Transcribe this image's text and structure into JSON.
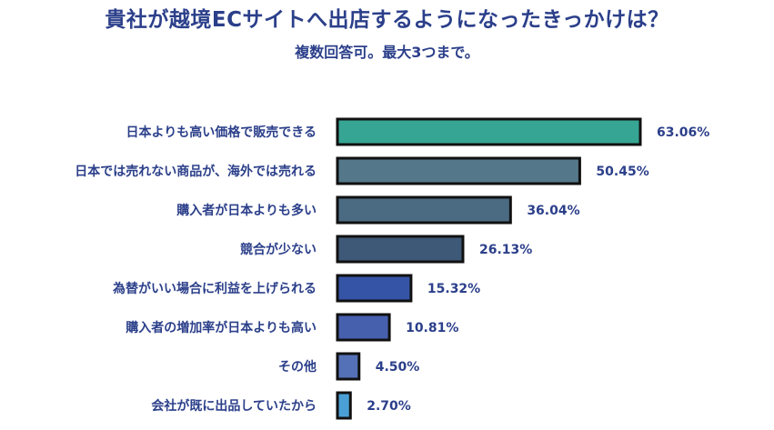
{
  "chart_data": {
    "type": "bar",
    "orientation": "horizontal",
    "title": "貴社が越境ECサイトへ出店するようになったきっかけは？",
    "subtitle": "複数回答可。最大3つまで。",
    "categories": [
      "日本よりも高い価格で販売できる",
      "日本では売れない商品が、海外では売れる",
      "購入者が日本よりも多い",
      "競合が少ない",
      "為替がいい場合に利益を上げられる",
      "購入者の増加率が日本よりも高い",
      "その他",
      "会社が既に出品していたから"
    ],
    "values": [
      63.06,
      50.45,
      36.04,
      26.13,
      15.32,
      10.81,
      4.5,
      2.7
    ],
    "value_labels": [
      "63.06%",
      "50.45%",
      "36.04%",
      "26.13%",
      "15.32%",
      "10.81%",
      "4.50%",
      "2.70%"
    ],
    "colors": [
      "#36a593",
      "#54788a",
      "#4b6b82",
      "#3e5877",
      "#3554a6",
      "#4660ae",
      "#5470b6",
      "#4aa0d6"
    ],
    "xlim": [
      0,
      63.06
    ],
    "grid": false,
    "legend": "none"
  }
}
